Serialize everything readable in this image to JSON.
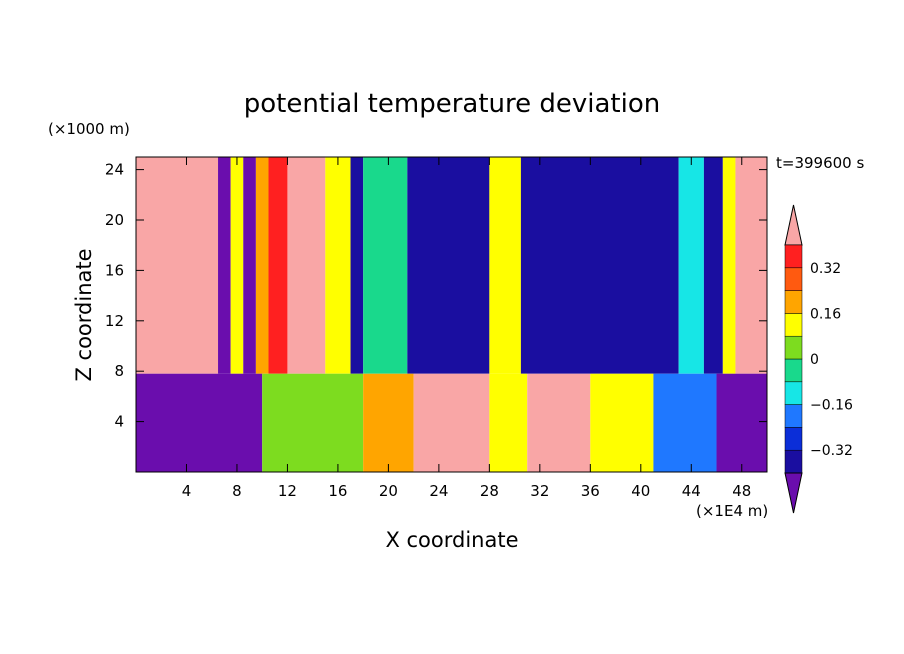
{
  "chart_data": {
    "type": "heatmap",
    "title": "potential temperature deviation",
    "xlabel": "X coordinate",
    "ylabel": "Z coordinate",
    "x_unit": "(×1E4 m)",
    "y_unit": "(×1000 m)",
    "time_label": "t=399600 s",
    "xlim": [
      0,
      50
    ],
    "ylim": [
      0,
      25
    ],
    "x_ticks": [
      4,
      8,
      12,
      16,
      20,
      24,
      28,
      32,
      36,
      40,
      44,
      48
    ],
    "y_ticks": [
      4,
      8,
      12,
      16,
      20,
      24
    ],
    "colorbar": {
      "levels": [
        -0.4,
        -0.32,
        -0.24,
        -0.16,
        -0.08,
        0,
        0.08,
        0.16,
        0.24,
        0.32,
        0.4
      ],
      "labels": [
        "−0.32",
        "−0.16",
        "0",
        "0.16",
        "0.32"
      ],
      "colors": [
        "#6a0dad",
        "#1a0ea0",
        "#0b2ed8",
        "#1f78ff",
        "#17e6e6",
        "#19d98c",
        "#7ddc1f",
        "#ffff00",
        "#ffa500",
        "#ff5a10",
        "#ff2020",
        "#f9a6a6"
      ]
    },
    "upper_layer_columns": [
      {
        "x_min": 0,
        "x_max": 6.5,
        "level": 0.5
      },
      {
        "x_min": 6.5,
        "x_max": 7.5,
        "level": -0.45
      },
      {
        "x_min": 7.5,
        "x_max": 8.5,
        "level": 0.1
      },
      {
        "x_min": 8.5,
        "x_max": 9.5,
        "level": -0.45
      },
      {
        "x_min": 9.5,
        "x_max": 10.5,
        "level": 0.2
      },
      {
        "x_min": 10.5,
        "x_max": 12,
        "level": 0.35
      },
      {
        "x_min": 12,
        "x_max": 15,
        "level": 0.45
      },
      {
        "x_min": 15,
        "x_max": 17,
        "level": 0.1
      },
      {
        "x_min": 17,
        "x_max": 18,
        "level": -0.4
      },
      {
        "x_min": 18,
        "x_max": 21.5,
        "level": -0.05
      },
      {
        "x_min": 21.5,
        "x_max": 28,
        "level": -0.36
      },
      {
        "x_min": 28,
        "x_max": 30.5,
        "level": 0.15
      },
      {
        "x_min": 30.5,
        "x_max": 43,
        "level": -0.36
      },
      {
        "x_min": 43,
        "x_max": 45,
        "level": -0.15
      },
      {
        "x_min": 45,
        "x_max": 46.5,
        "level": -0.4
      },
      {
        "x_min": 46.5,
        "x_max": 47.5,
        "level": 0.1
      },
      {
        "x_min": 47.5,
        "x_max": 50,
        "level": 0.5
      }
    ],
    "lower_layer_columns": [
      {
        "x_min": 0,
        "x_max": 10,
        "level": -0.45
      },
      {
        "x_min": 10,
        "x_max": 18,
        "level": 0.05
      },
      {
        "x_min": 18,
        "x_max": 22,
        "level": 0.2
      },
      {
        "x_min": 22,
        "x_max": 28,
        "level": 0.45
      },
      {
        "x_min": 28,
        "x_max": 31,
        "level": 0.1
      },
      {
        "x_min": 31,
        "x_max": 36,
        "level": 0.4
      },
      {
        "x_min": 36,
        "x_max": 41,
        "level": 0.15
      },
      {
        "x_min": 41,
        "x_max": 46,
        "level": -0.2
      },
      {
        "x_min": 46,
        "x_max": 50,
        "level": -0.45
      }
    ],
    "layer_boundary_z": 7.8
  }
}
